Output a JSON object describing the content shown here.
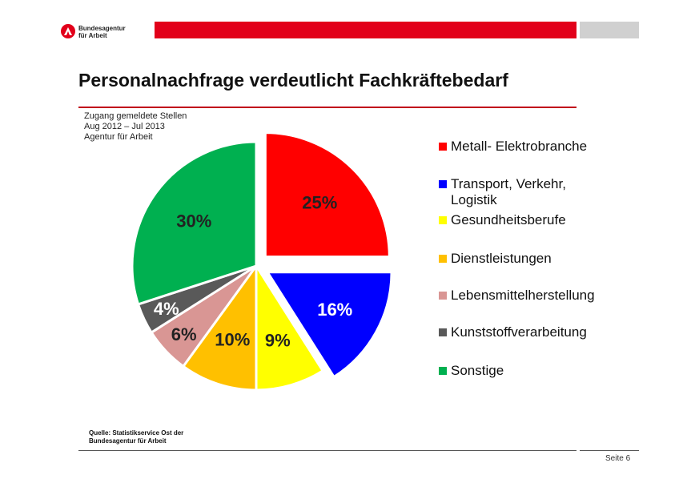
{
  "header": {
    "logo_text": [
      "Bundesagentur",
      "für Arbeit"
    ],
    "brand_color": "#e2001a"
  },
  "title": "Personalnachfrage verdeutlicht Fachkräftebedarf",
  "subtitle": [
    "Zugang gemeldete Stellen",
    "Aug 2012 – Jul 2013",
    "Agentur für Arbeit"
  ],
  "chart_data": {
    "type": "pie",
    "categories": [
      "Metall- Elektrobranche",
      "Transport, Verkehr, Logistik",
      "Gesundheitsberufe",
      "Dienstleistungen",
      "Lebensmittelherstellung",
      "Kunststoffverarbeitung",
      "Sonstige"
    ],
    "values": [
      25,
      16,
      9,
      10,
      6,
      4,
      30
    ],
    "labels": [
      "25%",
      "16%",
      "9%",
      "10%",
      "6%",
      "4%",
      "30%"
    ],
    "colors": [
      "#ff0000",
      "#0000ff",
      "#ffff00",
      "#ffc000",
      "#d99694",
      "#595959",
      "#00b050"
    ],
    "exploded": [
      true,
      true,
      false,
      false,
      false,
      false,
      false
    ],
    "legend_position": "right"
  },
  "source": [
    "Quelle: Statistikservice Ost der",
    "Bundesagentur für Arbeit"
  ],
  "footer": {
    "page": "Seite 6"
  }
}
